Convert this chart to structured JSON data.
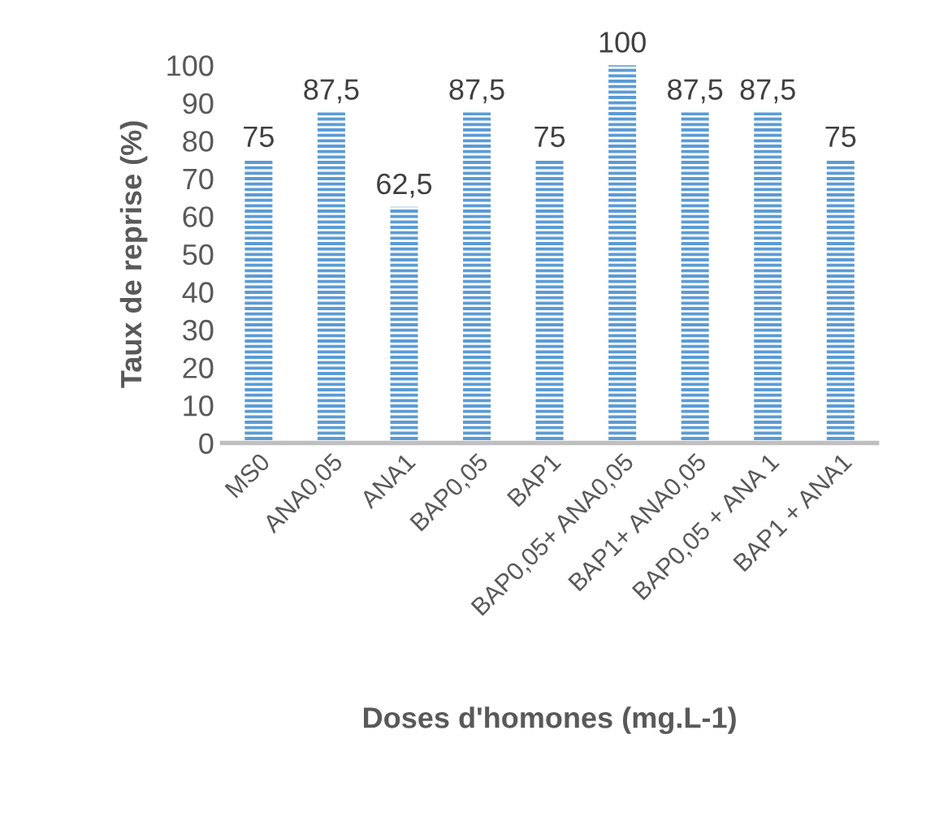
{
  "chart_data": {
    "type": "bar",
    "xlabel": "Doses d'homones (mg.L-1)",
    "ylabel": "Taux de reprise (%)",
    "categories": [
      "MS0",
      "ANA0,05",
      "ANA1",
      "BAP0,05",
      "BAP1",
      "BAP0,05+ ANA0,05",
      "BAP1+ ANA0,05",
      "BAP0,05 + ANA 1",
      "BAP1 + ANA1"
    ],
    "values": [
      75,
      87.5,
      62.5,
      87.5,
      75,
      100,
      87.5,
      87.5,
      75
    ],
    "value_labels": [
      "75",
      "87,5",
      "62,5",
      "87,5",
      "75",
      "100",
      "87,5",
      "87,5",
      "75"
    ],
    "color": "#5b9bd5",
    "ylim": [
      0,
      100
    ],
    "yticks": [
      0,
      10,
      20,
      30,
      40,
      50,
      60,
      70,
      80,
      90,
      100
    ],
    "grid": false,
    "legend": false
  }
}
